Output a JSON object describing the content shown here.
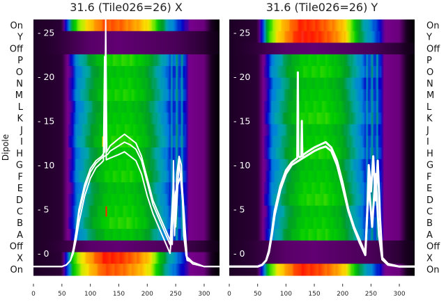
{
  "chart_data": [
    {
      "type": "heatmap",
      "title": "31.6 (Tile026=26) X",
      "polarization": "X",
      "ylabel": "Dipole",
      "row_labels": [
        "On",
        "Y",
        "Off",
        "P",
        "O",
        "N",
        "M",
        "L",
        "K",
        "J",
        "I",
        "H",
        "G",
        "F",
        "E",
        "D",
        "C",
        "B",
        "A",
        "Off",
        "X",
        "On"
      ],
      "row_types": [
        "hot",
        "off",
        "off",
        "dip",
        "dip",
        "dip",
        "dip",
        "dip",
        "dip",
        "dip",
        "dip",
        "dip",
        "dip",
        "dip",
        "dip",
        "dip",
        "dip",
        "dip",
        "dip",
        "off",
        "hot",
        "hot"
      ],
      "xlim": [
        0,
        327
      ],
      "xticks": [
        "0",
        "50",
        "100",
        "150",
        "200",
        "250",
        "300"
      ],
      "overlay_ylim": [
        -2.5,
        26.5
      ],
      "overlay_yticks": [
        "0",
        "5",
        "10",
        "15",
        "20",
        "25"
      ],
      "overlay_series": [
        {
          "name": "dipole-1",
          "x": [
            0,
            50,
            58,
            65,
            70,
            75,
            80,
            90,
            100,
            110,
            120,
            125,
            127,
            129,
            135,
            150,
            160,
            170,
            180,
            190,
            200,
            210,
            220,
            230,
            240,
            244,
            246,
            248,
            252,
            256,
            260,
            264,
            268,
            270,
            280,
            300,
            327
          ],
          "y": [
            -1.5,
            -1.5,
            -1.3,
            -0.8,
            0.5,
            2.5,
            5,
            7.8,
            9.6,
            10.5,
            11,
            11.5,
            26.5,
            11.5,
            12.2,
            13,
            13.5,
            13,
            12.5,
            11,
            8.5,
            6,
            4.5,
            3,
            1.5,
            1,
            10.5,
            2,
            9,
            11,
            10,
            2,
            0,
            -0.8,
            -1,
            -1.5,
            -1.5
          ]
        },
        {
          "name": "dipole-2",
          "x": [
            0,
            50,
            58,
            65,
            70,
            75,
            80,
            90,
            100,
            110,
            120,
            125,
            130,
            135,
            150,
            160,
            170,
            180,
            190,
            200,
            210,
            220,
            230,
            240,
            246,
            250,
            256,
            262,
            268,
            270,
            280,
            300,
            327
          ],
          "y": [
            -1.5,
            -1.5,
            -1.3,
            -0.8,
            0.2,
            2,
            4.5,
            7.3,
            9.2,
            10.2,
            10.8,
            11,
            11.2,
            11.6,
            12.2,
            12.6,
            12.3,
            11.8,
            10.5,
            8,
            5.5,
            4,
            2.5,
            1,
            8,
            3,
            10.5,
            6,
            -0.2,
            -0.6,
            -1.2,
            -1.5,
            -1.5
          ]
        },
        {
          "name": "dipole-3",
          "x": [
            0,
            50,
            58,
            65,
            70,
            75,
            80,
            90,
            100,
            110,
            120,
            123,
            125,
            128,
            135,
            150,
            160,
            170,
            180,
            190,
            200,
            210,
            220,
            230,
            240,
            250,
            260,
            270,
            280,
            300,
            327
          ],
          "y": [
            -1.5,
            -1.5,
            -1.3,
            -0.8,
            0,
            1.5,
            3.5,
            6.5,
            8.5,
            9.7,
            10.3,
            10.5,
            22.3,
            10.6,
            10.8,
            11.2,
            11.5,
            11,
            10.5,
            9,
            6.5,
            4.5,
            3,
            1.5,
            0,
            7,
            9,
            -0.4,
            -1,
            -1.5,
            -1.5
          ]
        }
      ],
      "markers": [
        {
          "x": 122,
          "row": "I",
          "color": "#ffcc00"
        },
        {
          "x": 128,
          "row": "C",
          "color": "#ff2200"
        }
      ]
    },
    {
      "type": "heatmap",
      "title": "31.6 (Tile026=26) Y",
      "polarization": "Y",
      "row_labels": [
        "On",
        "Y",
        "Off",
        "P",
        "O",
        "N",
        "M",
        "L",
        "K",
        "J",
        "I",
        "H",
        "G",
        "F",
        "E",
        "D",
        "C",
        "B",
        "A",
        "Off",
        "X",
        "On"
      ],
      "row_types": [
        "hot",
        "hot",
        "off",
        "dip",
        "dip",
        "dip",
        "dip",
        "dip",
        "dip",
        "dip",
        "dip",
        "dip",
        "dip",
        "dip",
        "dip",
        "dip",
        "dip",
        "dip",
        "dip",
        "off",
        "off",
        "hot"
      ],
      "xlim": [
        0,
        327
      ],
      "xticks": [
        "0",
        "50",
        "100",
        "150",
        "200",
        "250",
        "300"
      ],
      "overlay_ylim": [
        -2.5,
        26.5
      ],
      "overlay_yticks": [
        "0",
        "5",
        "10",
        "15",
        "20",
        "25"
      ],
      "overlay_series": [
        {
          "name": "dipole-1",
          "x": [
            0,
            50,
            58,
            65,
            70,
            75,
            80,
            90,
            100,
            110,
            118,
            120,
            121,
            122,
            124,
            127,
            128,
            129,
            131,
            140,
            150,
            160,
            170,
            180,
            190,
            200,
            210,
            220,
            230,
            240,
            244,
            246,
            250,
            254,
            258,
            262,
            266,
            270,
            280,
            300,
            327
          ],
          "y": [
            -1.5,
            -1.5,
            -1.3,
            -0.8,
            0.3,
            2.3,
            4.8,
            7.6,
            9.4,
            10.3,
            10.7,
            10.8,
            20.5,
            11,
            10.9,
            11,
            15,
            11,
            11.2,
            11.6,
            12,
            12.3,
            12.6,
            12,
            10.5,
            8,
            5,
            3,
            1.5,
            0,
            5.5,
            10,
            7,
            11,
            6,
            10.5,
            4,
            -0.5,
            -1.2,
            -1.5,
            -1.5
          ]
        },
        {
          "name": "dipole-2",
          "x": [
            0,
            50,
            58,
            65,
            70,
            75,
            80,
            90,
            100,
            110,
            120,
            130,
            140,
            150,
            160,
            170,
            180,
            190,
            200,
            210,
            220,
            230,
            240,
            246,
            252,
            258,
            264,
            270,
            280,
            300,
            327
          ],
          "y": [
            -1.5,
            -1.5,
            -1.3,
            -0.8,
            0.1,
            2,
            4.3,
            7.2,
            9,
            10,
            10.4,
            10.8,
            11.2,
            11.6,
            11.9,
            12.1,
            11.6,
            10,
            7.5,
            4.8,
            2.8,
            1.2,
            -0.2,
            8,
            3,
            9,
            2,
            -0.7,
            -1.3,
            -1.5,
            -1.5
          ]
        }
      ],
      "markers": [
        {
          "x": 121,
          "row": "I",
          "color": "#00ff33"
        },
        {
          "x": 128,
          "row": "H",
          "color": "#00ff33"
        }
      ]
    }
  ]
}
